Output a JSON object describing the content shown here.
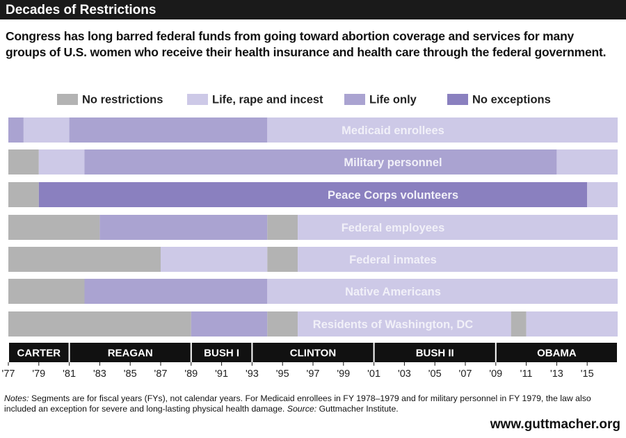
{
  "chart_data": {
    "type": "timeline",
    "title": "Decades of Restrictions",
    "subtitle": "Congress has long barred federal funds from going toward abortion coverage and services for many groups of U.S. women who receive their health insurance and health care through the federal government.",
    "legend": [
      {
        "name": "No restrictions",
        "color": "#b3b3b3"
      },
      {
        "name": "Life, rape and incest",
        "color": "#cdc9e7"
      },
      {
        "name": "Life only",
        "color": "#aaa3d1"
      },
      {
        "name": "No exceptions",
        "color": "#8a80bf"
      }
    ],
    "rows": [
      {
        "name": "Medicaid enrollees",
        "segments": [
          {
            "start": 1977,
            "end": 1978,
            "category": "Life only"
          },
          {
            "start": 1978,
            "end": 1981,
            "category": "Life, rape and incest"
          },
          {
            "start": 1981,
            "end": 1994,
            "category": "Life only"
          },
          {
            "start": 1994,
            "end": 2017,
            "category": "Life, rape and incest"
          }
        ]
      },
      {
        "name": "Military personnel",
        "segments": [
          {
            "start": 1977,
            "end": 1979,
            "category": "No restrictions"
          },
          {
            "start": 1979,
            "end": 1982,
            "category": "Life, rape and incest"
          },
          {
            "start": 1982,
            "end": 2013,
            "category": "Life only"
          },
          {
            "start": 2013,
            "end": 2017,
            "category": "Life, rape and incest"
          }
        ]
      },
      {
        "name": "Peace Corps volunteers",
        "segments": [
          {
            "start": 1977,
            "end": 1979,
            "category": "No restrictions"
          },
          {
            "start": 1979,
            "end": 2015,
            "category": "No exceptions"
          },
          {
            "start": 2015,
            "end": 2017,
            "category": "Life, rape and incest"
          }
        ]
      },
      {
        "name": "Federal employees",
        "segments": [
          {
            "start": 1977,
            "end": 1983,
            "category": "No restrictions"
          },
          {
            "start": 1983,
            "end": 1994,
            "category": "Life only"
          },
          {
            "start": 1994,
            "end": 1996,
            "category": "No restrictions"
          },
          {
            "start": 1996,
            "end": 2017,
            "category": "Life, rape and incest"
          }
        ]
      },
      {
        "name": "Federal inmates",
        "segments": [
          {
            "start": 1977,
            "end": 1987,
            "category": "No restrictions"
          },
          {
            "start": 1987,
            "end": 1994,
            "category": "Life, rape and incest"
          },
          {
            "start": 1994,
            "end": 1996,
            "category": "No restrictions"
          },
          {
            "start": 1996,
            "end": 2017,
            "category": "Life, rape and incest"
          }
        ]
      },
      {
        "name": "Native Americans",
        "segments": [
          {
            "start": 1977,
            "end": 1982,
            "category": "No restrictions"
          },
          {
            "start": 1982,
            "end": 1994,
            "category": "Life only"
          },
          {
            "start": 1994,
            "end": 2017,
            "category": "Life, rape and incest"
          }
        ]
      },
      {
        "name": "Residents of Washington, DC",
        "segments": [
          {
            "start": 1977,
            "end": 1989,
            "category": "No restrictions"
          },
          {
            "start": 1989,
            "end": 1994,
            "category": "Life only"
          },
          {
            "start": 1994,
            "end": 1996,
            "category": "No restrictions"
          },
          {
            "start": 1996,
            "end": 2010,
            "category": "Life, rape and incest"
          },
          {
            "start": 2010,
            "end": 2011,
            "category": "No restrictions"
          },
          {
            "start": 2011,
            "end": 2017,
            "category": "Life, rape and incest"
          }
        ]
      }
    ],
    "eras": [
      {
        "name": "CARTER",
        "start": 1977,
        "end": 1981
      },
      {
        "name": "REAGAN",
        "start": 1981,
        "end": 1989
      },
      {
        "name": "BUSH I",
        "start": 1989,
        "end": 1993
      },
      {
        "name": "CLINTON",
        "start": 1993,
        "end": 2001
      },
      {
        "name": "BUSH II",
        "start": 2001,
        "end": 2009
      },
      {
        "name": "OBAMA",
        "start": 2009,
        "end": 2017
      }
    ],
    "xlim": [
      1977,
      2017
    ],
    "xticks": [
      {
        "value": 1977,
        "label": "'77"
      },
      {
        "value": 1979,
        "label": "'79"
      },
      {
        "value": 1981,
        "label": "'81"
      },
      {
        "value": 1983,
        "label": "'83"
      },
      {
        "value": 1985,
        "label": "'85"
      },
      {
        "value": 1987,
        "label": "'87"
      },
      {
        "value": 1989,
        "label": "'89"
      },
      {
        "value": 1991,
        "label": "'91"
      },
      {
        "value": 1993,
        "label": "'93"
      },
      {
        "value": 1995,
        "label": "'95"
      },
      {
        "value": 1997,
        "label": "'97"
      },
      {
        "value": 1999,
        "label": "'99"
      },
      {
        "value": 2001,
        "label": "'01"
      },
      {
        "value": 2003,
        "label": "'03"
      },
      {
        "value": 2005,
        "label": "'05"
      },
      {
        "value": 2007,
        "label": "'07"
      },
      {
        "value": 2009,
        "label": "'09"
      },
      {
        "value": 2011,
        "label": "'11"
      },
      {
        "value": 2013,
        "label": "'13"
      },
      {
        "value": 2015,
        "label": "'15"
      }
    ],
    "notes_label": "Notes:",
    "notes_text": "Segments are for fiscal years (FYs), not calendar years. For Medicaid enrollees in FY 1978–1979 and for military personnel in FY 1979, the law also included an exception for severe and long-lasting physical health damage.",
    "source_label": "Source:",
    "source_text": "Guttmacher Institute.",
    "website": "www.guttmacher.org"
  }
}
